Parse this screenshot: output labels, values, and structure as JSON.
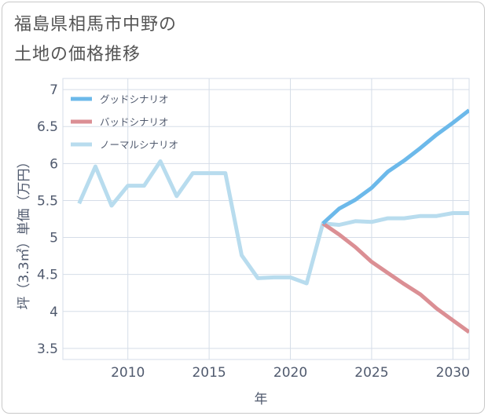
{
  "title_line1": "福島県相馬市中野の",
  "title_line2": "土地の価格推移",
  "chart_data": {
    "type": "line",
    "xlabel": "年",
    "ylabel": "坪（3.3㎡）単価（万円）",
    "xlim": [
      2006,
      2031
    ],
    "ylim": [
      3.35,
      7.15
    ],
    "xticks": [
      2010,
      2015,
      2020,
      2025,
      2030
    ],
    "yticks": [
      3.5,
      4,
      4.5,
      5,
      5.5,
      6,
      6.5,
      7
    ],
    "ytick_labels": [
      "3.5",
      "4",
      "4.5",
      "5",
      "5.5",
      "6",
      "6.5",
      "7"
    ],
    "grid": true,
    "legend_position": "top-left",
    "series": [
      {
        "name": "グッドシナリオ",
        "color": "#6cb9ea",
        "x": [
          2022,
          2023,
          2024,
          2025,
          2026,
          2027,
          2028,
          2029,
          2030,
          2031
        ],
        "y": [
          5.19,
          5.39,
          5.51,
          5.67,
          5.89,
          6.04,
          6.21,
          6.39,
          6.55,
          6.72
        ]
      },
      {
        "name": "バッドシナリオ",
        "color": "#db8f94",
        "x": [
          2022,
          2023,
          2024,
          2025,
          2026,
          2027,
          2028,
          2029,
          2030,
          2031
        ],
        "y": [
          5.19,
          5.04,
          4.87,
          4.67,
          4.52,
          4.37,
          4.23,
          4.04,
          3.88,
          3.72
        ]
      },
      {
        "name": "ノーマルシナリオ",
        "color": "#b8dcee",
        "x": [
          2007,
          2008,
          2009,
          2010,
          2011,
          2012,
          2013,
          2014,
          2015,
          2016,
          2017,
          2018,
          2019,
          2020,
          2021,
          2022,
          2023,
          2024,
          2025,
          2026,
          2027,
          2028,
          2029,
          2030,
          2031
        ],
        "y": [
          5.46,
          5.96,
          5.43,
          5.7,
          5.7,
          6.03,
          5.56,
          5.87,
          5.87,
          5.87,
          4.76,
          4.45,
          4.46,
          4.46,
          4.38,
          5.19,
          5.17,
          5.22,
          5.21,
          5.26,
          5.26,
          5.29,
          5.29,
          5.33,
          5.33
        ]
      }
    ]
  }
}
